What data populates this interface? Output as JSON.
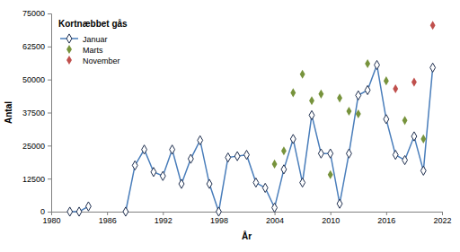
{
  "chart_data": {
    "type": "line",
    "title": "Kortnæbbet gås",
    "x_label": "År",
    "y_label": "Antal",
    "xlim": [
      1980,
      2022
    ],
    "xticks": [
      1980,
      1986,
      1992,
      1998,
      2004,
      2010,
      2016,
      2022
    ],
    "ylim": [
      0,
      75000
    ],
    "yticks": [
      0,
      12500,
      25000,
      37500,
      50000,
      62500,
      75000
    ],
    "grid": false,
    "legend": "top-left",
    "series": [
      {
        "name": "Januar",
        "type": "line",
        "color": "#4a7ebb",
        "marker": "diamond",
        "line_style": "solid",
        "x": [
          1982,
          1983,
          1984,
          1985,
          1986,
          1987,
          1988,
          1989,
          1990,
          1991,
          1992,
          1993,
          1994,
          1995,
          1996,
          1997,
          1998,
          1999,
          2000,
          2001,
          2002,
          2003,
          2004,
          2005,
          2006,
          2007,
          2008,
          2009,
          2010,
          2011,
          2012,
          2013,
          2014,
          2015,
          2016,
          2017,
          2018,
          2019,
          2020,
          2021
        ],
        "values": [
          0,
          0,
          2000,
          null,
          null,
          null,
          0,
          17500,
          23500,
          15000,
          13500,
          23500,
          10500,
          20000,
          27000,
          10500,
          0,
          20500,
          21000,
          21500,
          11000,
          9000,
          1500,
          16000,
          27500,
          11000,
          36500,
          22000,
          22000,
          3000,
          22000,
          44000,
          46000,
          55500,
          35000,
          21500,
          19500,
          28500,
          15500,
          54500
        ]
      },
      {
        "name": "Marts",
        "type": "scatter",
        "color": "#77933c",
        "marker": "diamond",
        "x": [
          2004,
          2005,
          2006,
          2007,
          2008,
          2009,
          2010,
          2011,
          2012,
          2013,
          2014,
          2016,
          2018,
          2020
        ],
        "values": [
          18000,
          23000,
          45000,
          52000,
          42000,
          44500,
          14000,
          43000,
          38000,
          37000,
          56000,
          49500,
          34500,
          27500
        ]
      },
      {
        "name": "November",
        "type": "scatter",
        "color": "#c0504d",
        "marker": "diamond",
        "x": [
          2017,
          2019,
          2021
        ],
        "values": [
          46500,
          49000,
          70500
        ]
      }
    ]
  }
}
